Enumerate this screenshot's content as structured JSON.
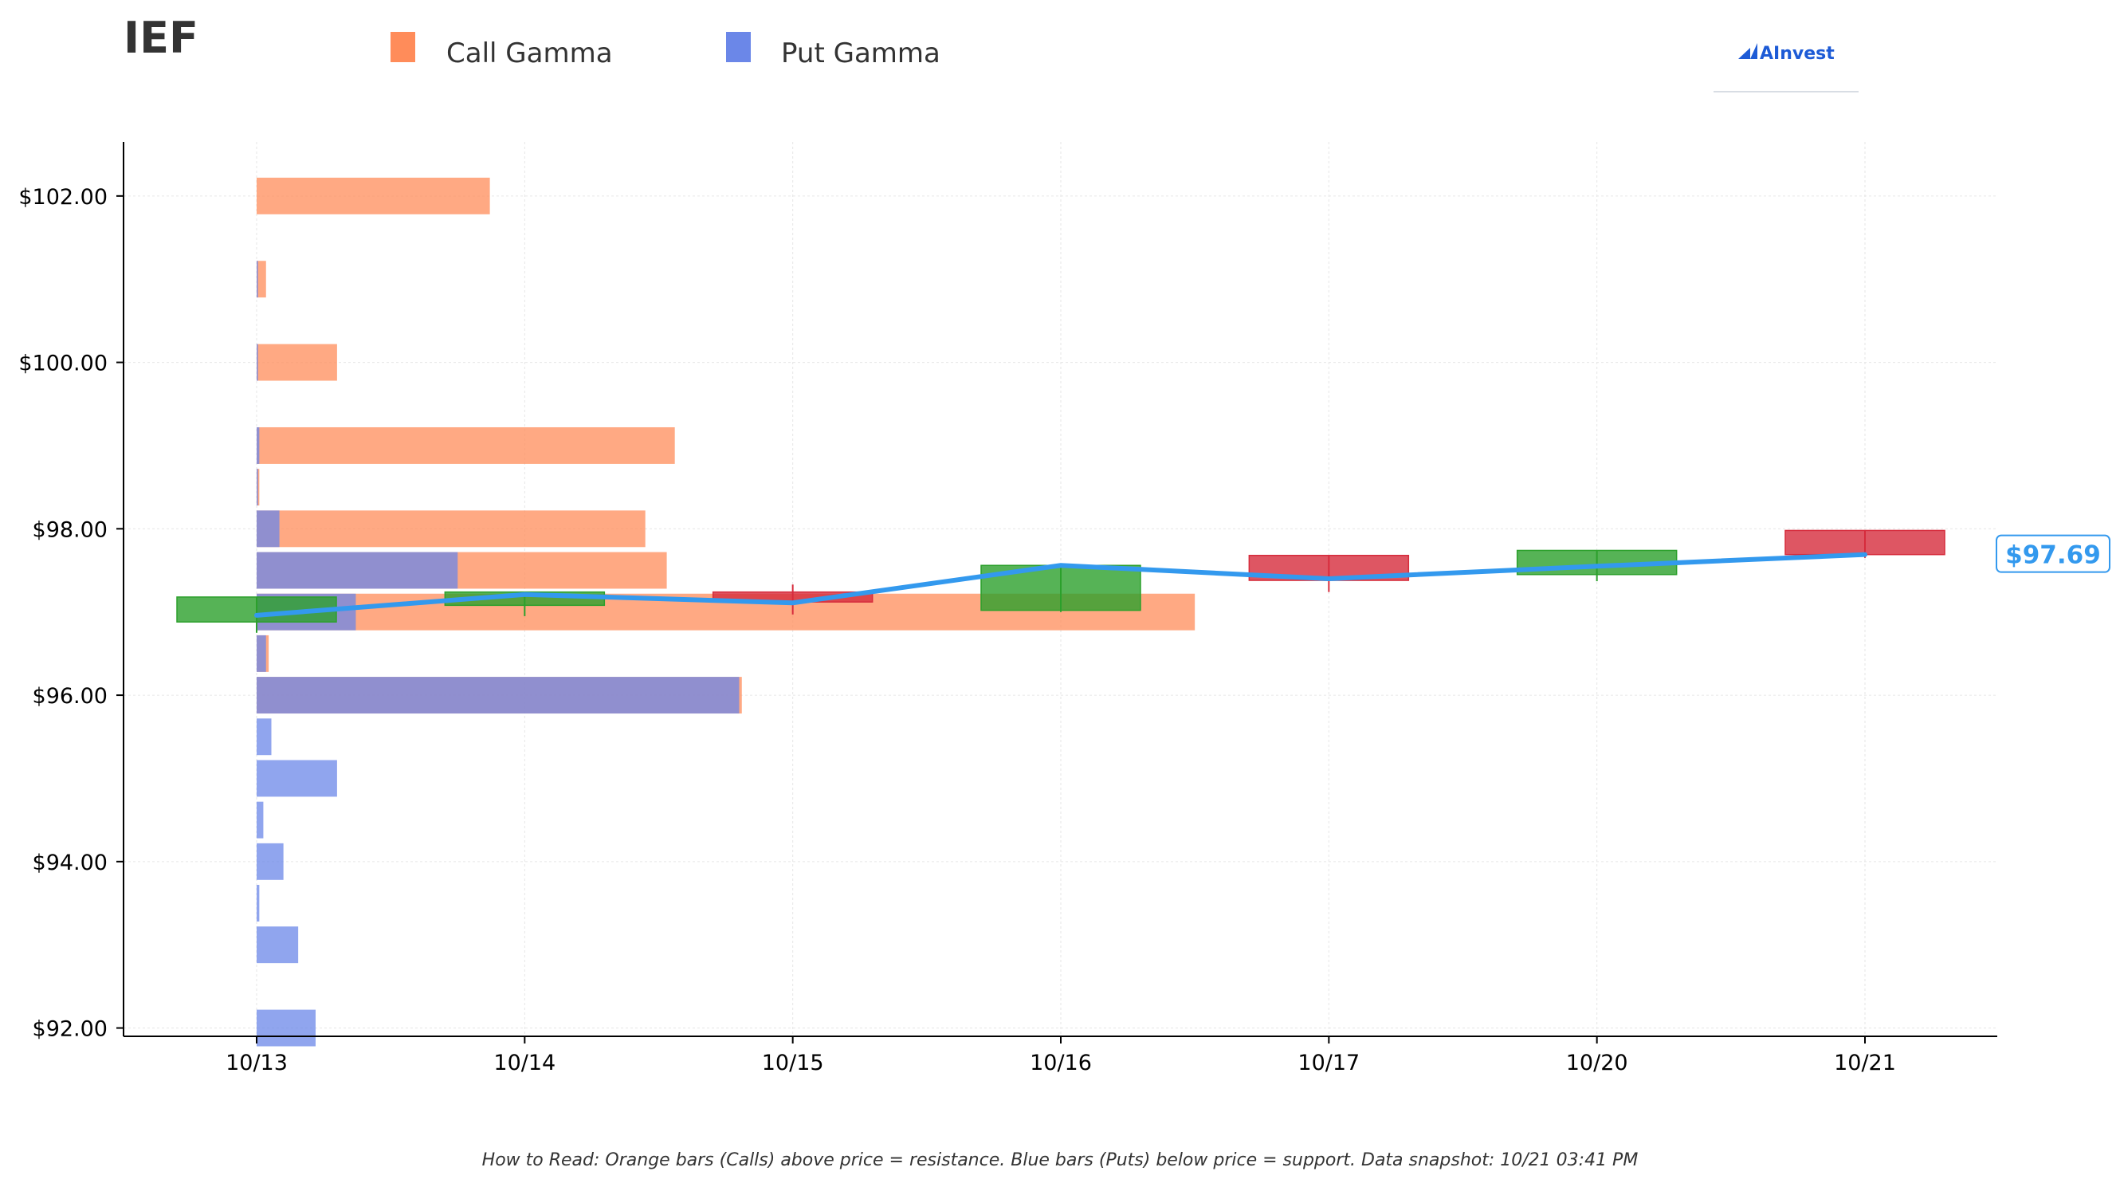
{
  "header": {
    "ticker": "IEF",
    "brand": "AInvest"
  },
  "legend": {
    "items": [
      {
        "label": "Call Gamma",
        "color": "#ff8c5a"
      },
      {
        "label": "Put Gamma",
        "color": "#6b87e8"
      }
    ]
  },
  "footer": {
    "note": "How to Read: Orange bars (Calls) above price = resistance. Blue bars (Puts) below price = support. Data snapshot: 10/21 03:41 PM"
  },
  "chart_data": {
    "type": "bar",
    "title": "IEF",
    "x_tick_labels": [
      "10/13",
      "10/14",
      "10/15",
      "10/16",
      "10/17",
      "10/20",
      "10/21"
    ],
    "y_ticks": [
      92,
      94,
      96,
      98,
      100,
      102
    ],
    "y_tick_labels": [
      "$92.00",
      "$94.00",
      "$96.00",
      "$98.00",
      "$100.00",
      "$102.00"
    ],
    "ylim": [
      91.9,
      102.65
    ],
    "xlim": [
      -0.5,
      6.5
    ],
    "grid": true,
    "legend_position": "top-left",
    "gamma_scale_note": "bar lengths in x-axis units starting at 10/13",
    "gamma_bars": [
      {
        "strike": 102.0,
        "call": 0.87,
        "put": 0.0
      },
      {
        "strike": 101.0,
        "call": 0.035,
        "put": 0.005
      },
      {
        "strike": 100.0,
        "call": 0.3,
        "put": 0.005
      },
      {
        "strike": 99.0,
        "call": 1.56,
        "put": 0.01
      },
      {
        "strike": 98.5,
        "call": 0.01,
        "put": 0.005
      },
      {
        "strike": 98.0,
        "call": 1.45,
        "put": 0.085
      },
      {
        "strike": 97.5,
        "call": 1.53,
        "put": 0.75
      },
      {
        "strike": 97.0,
        "call": 3.5,
        "put": 0.37
      },
      {
        "strike": 96.5,
        "call": 0.045,
        "put": 0.035
      },
      {
        "strike": 96.0,
        "call": 1.81,
        "put": 1.8
      },
      {
        "strike": 95.5,
        "call": 0.0,
        "put": 0.055
      },
      {
        "strike": 95.0,
        "call": 0.0,
        "put": 0.3
      },
      {
        "strike": 94.5,
        "call": 0.0,
        "put": 0.025
      },
      {
        "strike": 94.0,
        "call": 0.0,
        "put": 0.1
      },
      {
        "strike": 93.5,
        "call": 0.0,
        "put": 0.01
      },
      {
        "strike": 93.0,
        "call": 0.0,
        "put": 0.155
      },
      {
        "strike": 92.0,
        "call": 0.0,
        "put": 0.22
      }
    ],
    "candles": [
      {
        "date": "10/13",
        "open": 96.88,
        "high": 97.18,
        "low": 96.75,
        "close": 97.18
      },
      {
        "date": "10/14",
        "open": 97.08,
        "high": 97.24,
        "low": 96.95,
        "close": 97.24
      },
      {
        "date": "10/15",
        "open": 97.24,
        "high": 97.33,
        "low": 96.97,
        "close": 97.12
      },
      {
        "date": "10/16",
        "open": 97.02,
        "high": 97.57,
        "low": 97.0,
        "close": 97.56
      },
      {
        "date": "10/17",
        "open": 97.68,
        "high": 97.68,
        "low": 97.24,
        "close": 97.38
      },
      {
        "date": "10/20",
        "open": 97.45,
        "high": 97.74,
        "low": 97.37,
        "close": 97.74
      },
      {
        "date": "10/21",
        "open": 97.98,
        "high": 97.98,
        "low": 97.65,
        "close": 97.69
      }
    ],
    "price_line": {
      "values": [
        96.96,
        97.21,
        97.11,
        97.56,
        97.4,
        97.55,
        97.69
      ],
      "color": "#3399ee"
    },
    "last_price_label": "$97.69",
    "colors": {
      "call": "#ff8c5a",
      "put": "#6b87e8",
      "up_candle": "#2ca02c",
      "down_candle": "#d62c3c"
    }
  }
}
